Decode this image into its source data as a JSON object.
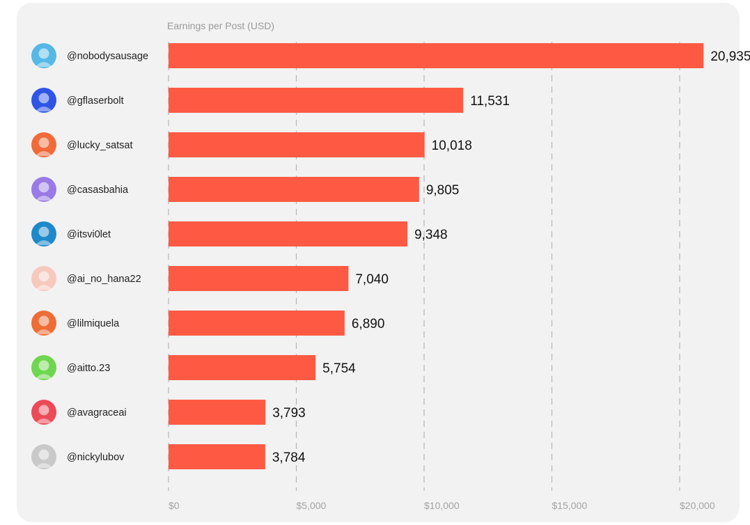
{
  "chart_data": {
    "type": "bar",
    "orientation": "horizontal",
    "title": "Earnings per Post (USD)",
    "xlim": [
      0,
      20000
    ],
    "x_ticks": [
      0,
      5000,
      10000,
      15000,
      20000
    ],
    "x_tick_labels": [
      "$0",
      "$5,000",
      "$10,000",
      "$15,000",
      "$20,000"
    ],
    "grid": "vertical dashed",
    "categories": [
      "@nobodysausage",
      "@gflaserbolt",
      "@lucky_satsat",
      "@casasbahia",
      "@itsvi0let",
      "@ai_no_hana22",
      "@lilmiquela",
      "@aitto.23",
      "@avagraceai",
      "@nickylubov"
    ],
    "values": [
      20935,
      11531,
      10018,
      9805,
      9348,
      7040,
      6890,
      5754,
      3793,
      3784
    ],
    "value_labels": [
      "20,935",
      "11,531",
      "10,018",
      "9,805",
      "9,348",
      "7,040",
      "6,890",
      "5,754",
      "3,793",
      "3,784"
    ],
    "bar_color": "#fe5a43",
    "avatar_colors": [
      "#56b8e6",
      "#2f55e6",
      "#f06a3a",
      "#9a7ae6",
      "#1e88c9",
      "#f7c8bd",
      "#ee6c35",
      "#6fd64f",
      "#ec4a57",
      "#c9c9c9"
    ]
  }
}
